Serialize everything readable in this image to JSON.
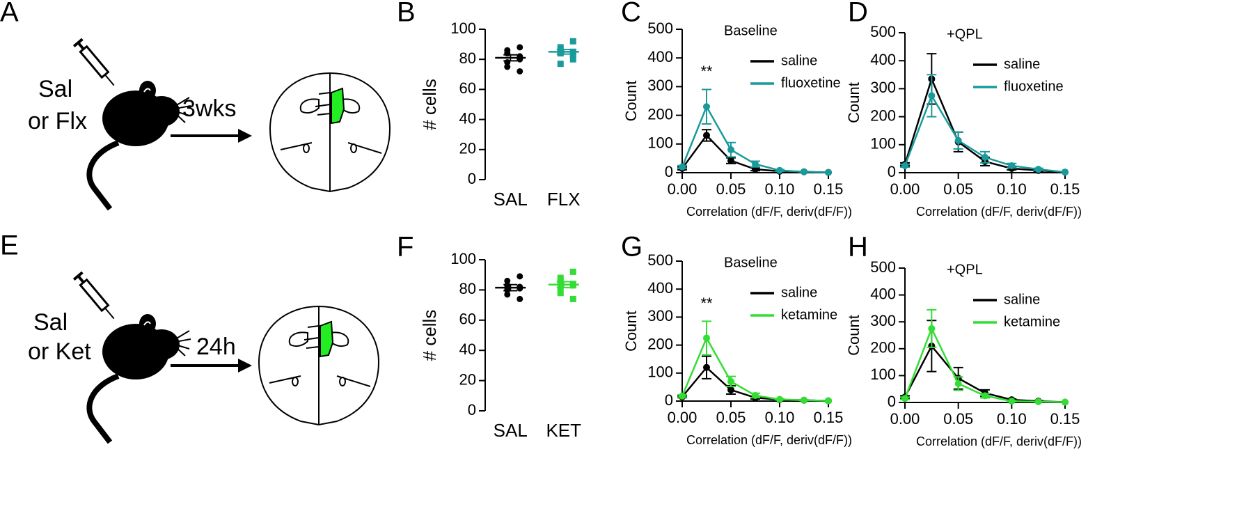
{
  "schematics": [
    {
      "label": "A",
      "drug": [
        "Sal",
        "or Flx"
      ],
      "duration": "3wks"
    },
    {
      "label": "E",
      "drug": [
        "Sal",
        "or Ket"
      ],
      "duration": "24h"
    }
  ],
  "chart_data": [
    {
      "type": "dot",
      "label": "B",
      "ylabel": "# cells",
      "categories": [
        "SAL",
        "FLX"
      ],
      "ylim": [
        0,
        100
      ],
      "yticks": [
        0,
        20,
        40,
        60,
        80,
        100
      ],
      "groups": [
        {
          "color": "#000000",
          "marker": "circle",
          "values": [
            88,
            86,
            84,
            82,
            80,
            78,
            75,
            72
          ],
          "mean": 81,
          "sem": 2
        },
        {
          "color": "#1a9a9a",
          "marker": "square",
          "values": [
            92,
            88,
            86,
            85,
            85,
            84,
            84,
            83,
            80,
            77
          ],
          "mean": 85,
          "sem": 1.5
        }
      ]
    },
    {
      "type": "line",
      "label": "C",
      "title": "Baseline",
      "xlabel": "Correlation (dF/F, deriv(dF/F))",
      "ylabel": "Count",
      "annotations": [
        {
          "text": "**",
          "x": 0.025
        }
      ],
      "x": [
        0,
        0.025,
        0.05,
        0.075,
        0.1,
        0.125,
        0.15
      ],
      "series": [
        {
          "name": "saline",
          "color": "#000000",
          "values": [
            15,
            130,
            42,
            12,
            5,
            3,
            1
          ],
          "errors": [
            5,
            20,
            10,
            5,
            2,
            1,
            0
          ]
        },
        {
          "name": "fluoxetine",
          "color": "#1a9a9a",
          "values": [
            20,
            230,
            80,
            30,
            8,
            3,
            1
          ],
          "errors": [
            5,
            60,
            25,
            10,
            3,
            1,
            0
          ]
        }
      ],
      "xlim": [
        0,
        0.15
      ],
      "xticks": [
        {
          "value": 0,
          "label": "0.00"
        },
        {
          "value": 0.05,
          "label": "0.05"
        },
        {
          "value": 0.1,
          "label": "0.10"
        },
        {
          "value": 0.15,
          "label": "0.15"
        }
      ],
      "ylim": [
        0,
        500
      ],
      "yticks": [
        0,
        100,
        200,
        300,
        400,
        500
      ]
    },
    {
      "type": "line",
      "label": "D",
      "title": "+QPL",
      "xlabel": "Correlation (dF/F, deriv(dF/F))",
      "ylabel": "Count",
      "annotations": [],
      "x": [
        0,
        0.025,
        0.05,
        0.075,
        0.1,
        0.125,
        0.15
      ],
      "series": [
        {
          "name": "saline",
          "color": "#000000",
          "values": [
            30,
            335,
            110,
            40,
            15,
            8,
            2
          ],
          "errors": [
            5,
            90,
            35,
            15,
            5,
            3,
            0
          ]
        },
        {
          "name": "fluoxetine",
          "color": "#1a9a9a",
          "values": [
            25,
            275,
            115,
            55,
            25,
            12,
            2
          ],
          "errors": [
            5,
            75,
            30,
            20,
            8,
            4,
            0
          ]
        }
      ],
      "xlim": [
        0,
        0.15
      ],
      "xticks": [
        {
          "value": 0,
          "label": "0.00"
        },
        {
          "value": 0.05,
          "label": "0.05"
        },
        {
          "value": 0.1,
          "label": "0.10"
        },
        {
          "value": 0.15,
          "label": "0.15"
        }
      ],
      "ylim": [
        0,
        500
      ],
      "yticks": [
        0,
        100,
        200,
        300,
        400,
        500
      ]
    },
    {
      "type": "dot",
      "label": "F",
      "ylabel": "# cells",
      "categories": [
        "SAL",
        "KET"
      ],
      "ylim": [
        0,
        100
      ],
      "yticks": [
        0,
        20,
        40,
        60,
        80,
        100
      ],
      "groups": [
        {
          "color": "#000000",
          "marker": "circle",
          "values": [
            89,
            86,
            83,
            82,
            81,
            80,
            77,
            74
          ],
          "mean": 81.5,
          "sem": 2
        },
        {
          "color": "#33dd33",
          "marker": "square",
          "values": [
            92,
            88,
            86,
            84,
            83,
            82,
            78,
            74
          ],
          "mean": 83.5,
          "sem": 2
        }
      ]
    },
    {
      "type": "line",
      "label": "G",
      "title": "Baseline",
      "xlabel": "Correlation (dF/F, deriv(dF/F))",
      "ylabel": "Count",
      "annotations": [
        {
          "text": "**",
          "x": 0.025
        }
      ],
      "x": [
        0,
        0.025,
        0.05,
        0.075,
        0.1,
        0.125,
        0.15
      ],
      "series": [
        {
          "name": "saline",
          "color": "#000000",
          "values": [
            15,
            120,
            40,
            12,
            5,
            3,
            1
          ],
          "errors": [
            3,
            40,
            15,
            5,
            2,
            1,
            0
          ]
        },
        {
          "name": "ketamine",
          "color": "#33dd33",
          "values": [
            18,
            225,
            70,
            20,
            6,
            3,
            1
          ],
          "errors": [
            4,
            60,
            18,
            8,
            2,
            1,
            0
          ]
        }
      ],
      "xlim": [
        0,
        0.15
      ],
      "xticks": [
        {
          "value": 0,
          "label": "0.00"
        },
        {
          "value": 0.05,
          "label": "0.05"
        },
        {
          "value": 0.1,
          "label": "0.10"
        },
        {
          "value": 0.15,
          "label": "0.15"
        }
      ],
      "ylim": [
        0,
        500
      ],
      "yticks": [
        0,
        100,
        200,
        300,
        400,
        500
      ]
    },
    {
      "type": "line",
      "label": "H",
      "title": "+QPL",
      "xlabel": "Correlation (dF/F, deriv(dF/F))",
      "ylabel": "Count",
      "annotations": [],
      "x": [
        0,
        0.025,
        0.05,
        0.075,
        0.1,
        0.125,
        0.15
      ],
      "series": [
        {
          "name": "saline",
          "color": "#000000",
          "values": [
            20,
            210,
            90,
            35,
            10,
            5,
            1
          ],
          "errors": [
            5,
            95,
            40,
            12,
            3,
            2,
            0
          ]
        },
        {
          "name": "ketamine",
          "color": "#33dd33",
          "values": [
            15,
            275,
            70,
            25,
            5,
            3,
            1
          ],
          "errors": [
            4,
            70,
            25,
            8,
            2,
            1,
            0
          ]
        }
      ],
      "xlim": [
        0,
        0.15
      ],
      "xticks": [
        {
          "value": 0,
          "label": "0.00"
        },
        {
          "value": 0.05,
          "label": "0.05"
        },
        {
          "value": 0.1,
          "label": "0.10"
        },
        {
          "value": 0.15,
          "label": "0.15"
        }
      ],
      "ylim": [
        0,
        500
      ],
      "yticks": [
        0,
        100,
        200,
        300,
        400,
        500
      ]
    }
  ]
}
